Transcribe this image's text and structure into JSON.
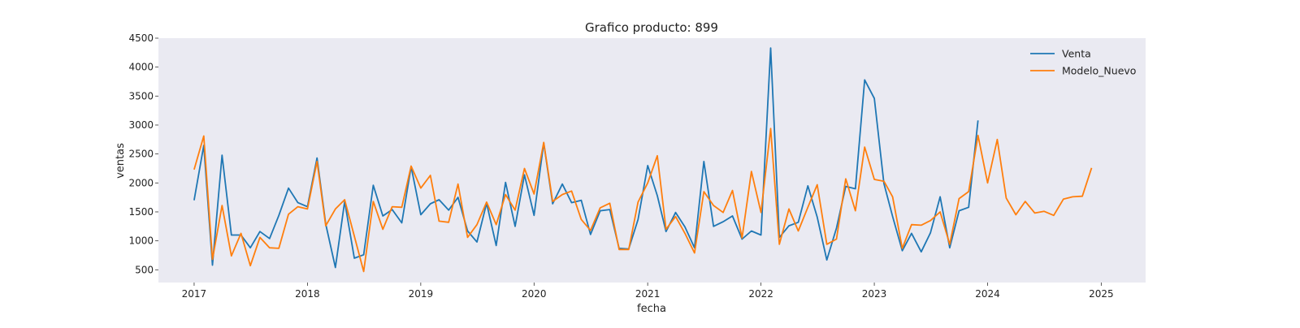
{
  "chart_data": {
    "type": "line",
    "title": "Grafico producto: 899",
    "xlabel": "fecha",
    "ylabel": "ventas",
    "x_start": "2017-01",
    "x_frequency": "monthly",
    "xlim": [
      "2016-09-08",
      "2025-05-24"
    ],
    "ylim": [
      280,
      4500
    ],
    "x_ticks": [
      "2017",
      "2018",
      "2019",
      "2020",
      "2021",
      "2022",
      "2023",
      "2024",
      "2025"
    ],
    "y_ticks": [
      500,
      1000,
      1500,
      2000,
      2500,
      3000,
      3500,
      4000,
      4500
    ],
    "grid": false,
    "background": "#eaeaf2",
    "legend_position": "top-right",
    "series": [
      {
        "name": "Venta",
        "color": "#1f77b4",
        "values": [
          1700,
          2650,
          580,
          2480,
          1100,
          1100,
          880,
          1160,
          1040,
          1440,
          1910,
          1660,
          1590,
          2430,
          1290,
          540,
          1680,
          700,
          760,
          1960,
          1430,
          1540,
          1310,
          2280,
          1450,
          1640,
          1710,
          1530,
          1750,
          1170,
          980,
          1650,
          920,
          2010,
          1250,
          2140,
          1440,
          2690,
          1640,
          1980,
          1660,
          1700,
          1110,
          1520,
          1540,
          870,
          860,
          1370,
          2300,
          1780,
          1160,
          1490,
          1240,
          880,
          2370,
          1250,
          1330,
          1430,
          1030,
          1170,
          1100,
          4330,
          1060,
          1260,
          1320,
          1950,
          1410,
          670,
          1220,
          1940,
          1900,
          3780,
          3460,
          1990,
          1420,
          830,
          1130,
          810,
          1140,
          1760,
          880,
          1520,
          1580,
          3080
        ]
      },
      {
        "name": "Modelo_Nuevo",
        "color": "#ff7f0e",
        "values": [
          2230,
          2810,
          680,
          1610,
          740,
          1130,
          570,
          1060,
          880,
          870,
          1460,
          1590,
          1550,
          2370,
          1260,
          1550,
          1710,
          1080,
          470,
          1680,
          1200,
          1590,
          1580,
          2290,
          1910,
          2130,
          1340,
          1320,
          1980,
          1060,
          1280,
          1670,
          1280,
          1800,
          1530,
          2250,
          1810,
          2700,
          1680,
          1800,
          1860,
          1370,
          1180,
          1570,
          1650,
          850,
          850,
          1670,
          2000,
          2470,
          1200,
          1420,
          1130,
          790,
          1850,
          1610,
          1490,
          1870,
          1050,
          2200,
          1490,
          2940,
          940,
          1550,
          1170,
          1580,
          1970,
          940,
          1030,
          2070,
          1520,
          2620,
          2060,
          2030,
          1760,
          870,
          1280,
          1270,
          1350,
          1500,
          940,
          1730,
          1850,
          2820,
          2000,
          2750,
          1740,
          1450,
          1680,
          1480,
          1510,
          1440,
          1720,
          1760,
          1770,
          2260
        ]
      }
    ]
  }
}
